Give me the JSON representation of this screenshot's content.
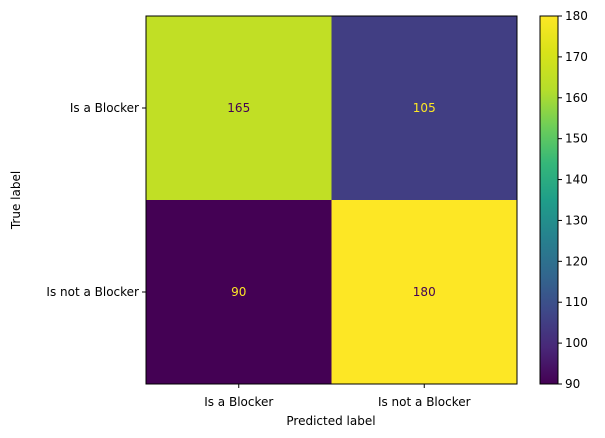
{
  "chart_data": {
    "type": "heatmap",
    "title": "",
    "xlabel": "Predicted label",
    "ylabel": "True label",
    "x_categories": [
      "Is a Blocker",
      "Is not a Blocker"
    ],
    "y_categories": [
      "Is a Blocker",
      "Is not a Blocker"
    ],
    "values": [
      [
        165,
        105
      ],
      [
        90,
        180
      ]
    ],
    "colormap": "viridis",
    "colorbar": {
      "range": [
        90,
        180
      ],
      "ticks": [
        "90",
        "100",
        "110",
        "120",
        "130",
        "140",
        "150",
        "160",
        "170",
        "180"
      ]
    },
    "grid": false
  }
}
